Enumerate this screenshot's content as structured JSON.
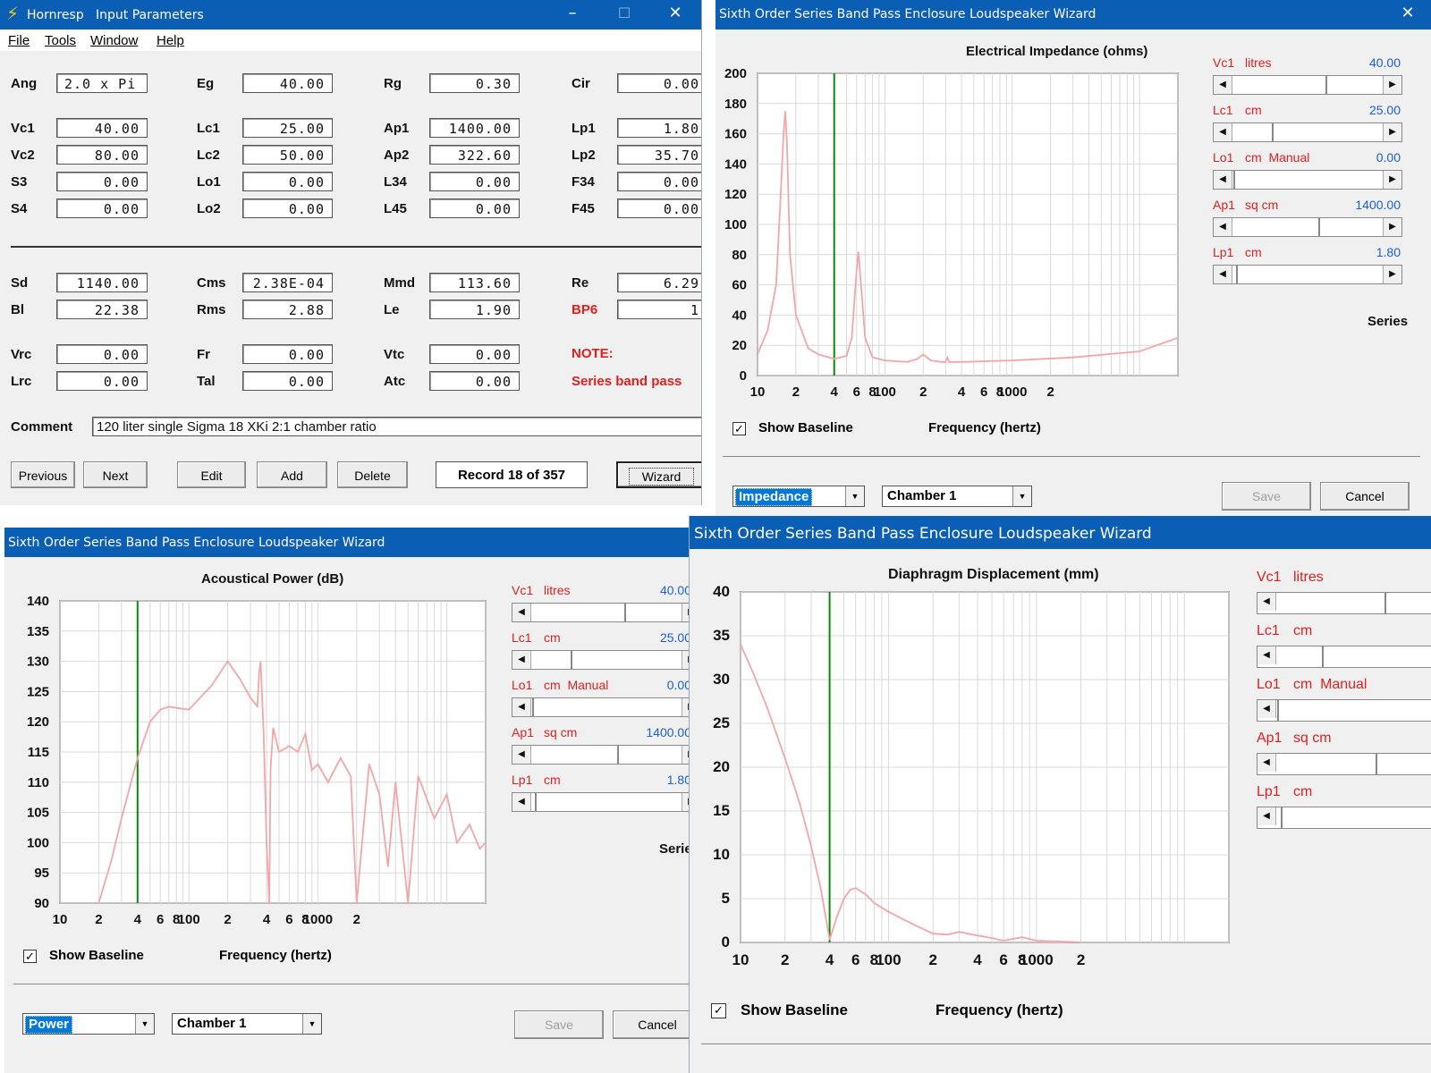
{
  "main_window": {
    "app_name": "Hornresp",
    "title": "Input Parameters",
    "menu": [
      "File",
      "Tools",
      "Window",
      "Help"
    ],
    "params_top": [
      {
        "label": "Ang",
        "value": "2.0 x Pi"
      },
      {
        "label": "Eg",
        "value": "40.00"
      },
      {
        "label": "Rg",
        "value": "0.30"
      },
      {
        "label": "Cir",
        "value": "0.00"
      },
      {
        "label": "Vc1",
        "value": "40.00"
      },
      {
        "label": "Lc1",
        "value": "25.00"
      },
      {
        "label": "Ap1",
        "value": "1400.00"
      },
      {
        "label": "Lp1",
        "value": "1.80"
      },
      {
        "label": "Vc2",
        "value": "80.00"
      },
      {
        "label": "Lc2",
        "value": "50.00"
      },
      {
        "label": "Ap2",
        "value": "322.60"
      },
      {
        "label": "Lp2",
        "value": "35.70"
      },
      {
        "label": "S3",
        "value": "0.00"
      },
      {
        "label": "Lo1",
        "value": "0.00"
      },
      {
        "label": "L34",
        "value": "0.00"
      },
      {
        "label": "F34",
        "value": "0.00"
      },
      {
        "label": "S4",
        "value": "0.00"
      },
      {
        "label": "Lo2",
        "value": "0.00"
      },
      {
        "label": "L45",
        "value": "0.00"
      },
      {
        "label": "F45",
        "value": "0.00"
      }
    ],
    "params_driver": [
      {
        "label": "Sd",
        "value": "1140.00"
      },
      {
        "label": "Cms",
        "value": "2.38E-04"
      },
      {
        "label": "Mmd",
        "value": "113.60"
      },
      {
        "label": "Re",
        "value": "6.29"
      },
      {
        "label": "Bl",
        "value": "22.38"
      },
      {
        "label": "Rms",
        "value": "2.88"
      },
      {
        "label": "Le",
        "value": "1.90"
      },
      {
        "label": "BP6",
        "value": "1",
        "red": true
      },
      {
        "label": "Vrc",
        "value": "0.00"
      },
      {
        "label": "Fr",
        "value": "0.00"
      },
      {
        "label": "Vtc",
        "value": "0.00"
      },
      {
        "label": "Lrc",
        "value": "0.00"
      },
      {
        "label": "Tal",
        "value": "0.00"
      },
      {
        "label": "Atc",
        "value": "0.00"
      }
    ],
    "note_label": "NOTE:",
    "note_text": "Series band pass",
    "comment_label": "Comment",
    "comment_value": "120 liter single Sigma 18 XKi 2:1 chamber ratio",
    "buttons": [
      "Previous",
      "Next",
      "Edit",
      "Add",
      "Delete"
    ],
    "record": "Record 18 of 357",
    "wizard_button": "Wizard"
  },
  "wizard_title": "Sixth Order Series Band Pass Enclosure Loudspeaker Wizard",
  "sliders": [
    {
      "name": "Vc1",
      "unit": "litres",
      "value": "40.00",
      "level": 0.6
    },
    {
      "name": "Lc1",
      "unit": "cm",
      "value": "25.00",
      "level": 0.25
    },
    {
      "name": "Lo1",
      "unit": "cm  Manual",
      "value": "0.00",
      "level": 0.0
    },
    {
      "name": "Ap1",
      "unit": "sq cm",
      "value": "1400.00",
      "level": 0.55
    },
    {
      "name": "Lp1",
      "unit": "cm",
      "value": "1.80",
      "level": 0.02
    }
  ],
  "series_label": "Series",
  "show_baseline": "Show Baseline",
  "freq_label": "Frequency (hertz)",
  "save_label": "Save",
  "cancel_label": "Cancel",
  "chamber": "Chamber 1",
  "windows": {
    "impedance": {
      "mode": "Impedance",
      "chart_title": "Electrical Impedance (ohms)"
    },
    "power": {
      "mode": "Power",
      "chart_title": "Acoustical Power (dB)"
    },
    "displacement": {
      "chart_title": "Diaphragm Displacement (mm)"
    }
  },
  "chart_data": [
    {
      "type": "line",
      "title": "Electrical Impedance (ohms)",
      "xlabel": "Frequency (hertz)",
      "x_scale": "log",
      "xlim": [
        10,
        20000
      ],
      "x_ticks": [
        "10",
        "2",
        "4",
        "6",
        "8",
        "100",
        "2",
        "4",
        "6",
        "8",
        "1000",
        "2"
      ],
      "ylim": [
        0,
        200
      ],
      "y_ticks": [
        0,
        20,
        40,
        60,
        80,
        100,
        120,
        140,
        160,
        180,
        200
      ],
      "baseline_marker_x": 40,
      "series": [
        {
          "color": "#f4a6a6",
          "x": [
            10,
            12,
            14,
            15,
            16,
            16.5,
            17,
            18,
            20,
            25,
            30,
            40,
            50,
            55,
            60,
            62,
            65,
            70,
            80,
            100,
            150,
            180,
            200,
            230,
            280,
            300,
            310,
            320,
            400,
            1000,
            3000,
            10000,
            20000
          ],
          "y": [
            14,
            30,
            60,
            110,
            160,
            175,
            155,
            80,
            40,
            18,
            14,
            11,
            13,
            25,
            70,
            82,
            60,
            25,
            12,
            10,
            9,
            11,
            14,
            10,
            9,
            9,
            12,
            9,
            9,
            10,
            12,
            16,
            25
          ]
        }
      ]
    },
    {
      "type": "line",
      "title": "Acoustical Power (dB)",
      "xlabel": "Frequency (hertz)",
      "x_scale": "log",
      "xlim": [
        10,
        20000
      ],
      "x_ticks": [
        "10",
        "2",
        "4",
        "6",
        "8",
        "100",
        "2",
        "4",
        "6",
        "8",
        "1000",
        "2"
      ],
      "ylim": [
        90,
        140
      ],
      "y_ticks": [
        90,
        95,
        100,
        105,
        110,
        115,
        120,
        125,
        130,
        135,
        140
      ],
      "baseline_marker_x": 40,
      "series": [
        {
          "color": "#f4a6a6",
          "x": [
            20,
            25,
            30,
            40,
            50,
            60,
            70,
            80,
            100,
            150,
            200,
            250,
            300,
            340,
            350,
            360,
            380,
            400,
            420,
            430,
            450,
            500,
            600,
            700,
            800,
            900,
            1000,
            1200,
            1500,
            1800,
            2000,
            2500,
            3000,
            3500,
            4000,
            5000,
            6000,
            8000,
            10000,
            12000,
            15000,
            18000,
            20000
          ],
          "y": [
            90,
            97,
            104,
            114,
            120,
            122,
            122.5,
            122.3,
            122,
            126,
            130,
            127,
            124,
            122.5,
            128,
            130,
            118,
            100,
            90,
            112,
            119,
            115,
            116,
            115,
            118,
            112,
            113,
            110,
            114,
            111,
            90,
            113,
            108,
            96,
            110,
            90,
            111,
            104,
            108,
            100,
            103,
            99,
            100
          ]
        }
      ]
    },
    {
      "type": "line",
      "title": "Diaphragm Displacement (mm)",
      "xlabel": "Frequency (hertz)",
      "x_scale": "log",
      "xlim": [
        10,
        20000
      ],
      "x_ticks": [
        "10",
        "2",
        "4",
        "6",
        "8",
        "100",
        "2",
        "4",
        "6",
        "8",
        "1000",
        "2"
      ],
      "ylim": [
        0,
        40
      ],
      "y_ticks": [
        0,
        5,
        10,
        15,
        20,
        25,
        30,
        35,
        40
      ],
      "baseline_marker_x": 40,
      "series": [
        {
          "color": "#f4a6a6",
          "x": [
            10,
            12,
            15,
            20,
            25,
            30,
            35,
            40,
            45,
            50,
            55,
            60,
            70,
            80,
            100,
            150,
            200,
            250,
            300,
            400,
            500,
            600,
            800,
            1000,
            1500,
            2000
          ],
          "y": [
            34,
            31,
            27,
            21,
            16,
            11,
            6,
            0.3,
            3,
            5,
            6,
            6.2,
            5.5,
            4.5,
            3.5,
            2,
            1,
            0.9,
            1.2,
            0.8,
            0.5,
            0.2,
            0.6,
            0.2,
            0.1,
            0
          ]
        }
      ]
    }
  ]
}
